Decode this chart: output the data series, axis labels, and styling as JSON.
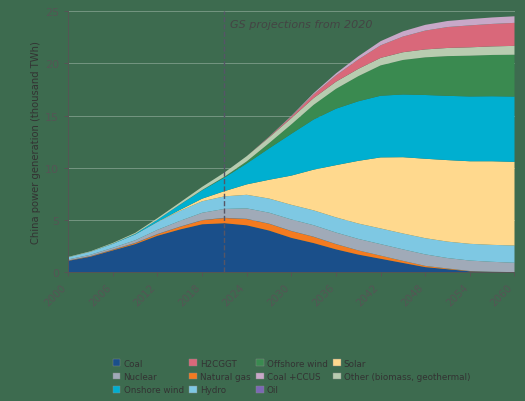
{
  "years": [
    2000,
    2003,
    2006,
    2009,
    2012,
    2015,
    2018,
    2021,
    2024,
    2027,
    2030,
    2033,
    2036,
    2039,
    2042,
    2045,
    2048,
    2051,
    2054,
    2057,
    2060
  ],
  "series": {
    "Coal": [
      1.1,
      1.5,
      2.1,
      2.7,
      3.5,
      4.1,
      4.6,
      4.7,
      4.5,
      4.0,
      3.3,
      2.8,
      2.2,
      1.7,
      1.3,
      0.9,
      0.5,
      0.3,
      0.1,
      0.05,
      0.02
    ],
    "Natural gas": [
      0.02,
      0.04,
      0.06,
      0.1,
      0.15,
      0.25,
      0.38,
      0.5,
      0.6,
      0.65,
      0.65,
      0.6,
      0.5,
      0.4,
      0.3,
      0.2,
      0.12,
      0.07,
      0.03,
      0.01,
      0.0
    ],
    "Oil": [
      0.02,
      0.02,
      0.02,
      0.02,
      0.02,
      0.02,
      0.02,
      0.02,
      0.02,
      0.01,
      0.01,
      0.01,
      0.01,
      0.0,
      0.0,
      0.0,
      0.0,
      0.0,
      0.0,
      0.0,
      0.0
    ],
    "Nuclear": [
      0.1,
      0.13,
      0.17,
      0.25,
      0.4,
      0.55,
      0.7,
      0.85,
      1.0,
      1.05,
      1.1,
      1.1,
      1.1,
      1.1,
      1.1,
      1.1,
      1.1,
      1.0,
      1.0,
      0.95,
      0.9
    ],
    "Hydro": [
      0.2,
      0.28,
      0.38,
      0.55,
      0.75,
      0.95,
      1.1,
      1.2,
      1.3,
      1.35,
      1.4,
      1.42,
      1.45,
      1.47,
      1.5,
      1.52,
      1.55,
      1.57,
      1.6,
      1.62,
      1.65
    ],
    "Solar": [
      0.0,
      0.0,
      0.0,
      0.0,
      0.02,
      0.1,
      0.25,
      0.5,
      1.0,
      1.8,
      2.8,
      3.9,
      5.0,
      6.0,
      6.8,
      7.3,
      7.6,
      7.8,
      7.9,
      8.0,
      8.0
    ],
    "Onshore wind": [
      0.0,
      0.0,
      0.02,
      0.06,
      0.2,
      0.5,
      0.8,
      1.3,
      2.0,
      3.0,
      4.0,
      4.8,
      5.4,
      5.7,
      5.9,
      6.0,
      6.1,
      6.15,
      6.2,
      6.22,
      6.25
    ],
    "Offshore wind": [
      0.0,
      0.0,
      0.0,
      0.0,
      0.0,
      0.01,
      0.03,
      0.08,
      0.2,
      0.5,
      0.9,
      1.4,
      1.9,
      2.4,
      2.9,
      3.3,
      3.6,
      3.8,
      3.9,
      3.95,
      4.0
    ],
    "Other (biomass, geothermal)": [
      0.04,
      0.05,
      0.07,
      0.1,
      0.15,
      0.2,
      0.3,
      0.4,
      0.5,
      0.55,
      0.6,
      0.65,
      0.68,
      0.7,
      0.72,
      0.74,
      0.76,
      0.78,
      0.8,
      0.82,
      0.85
    ],
    "H2CGGT": [
      0.0,
      0.0,
      0.0,
      0.0,
      0.0,
      0.0,
      0.0,
      0.0,
      0.0,
      0.05,
      0.15,
      0.35,
      0.6,
      0.9,
      1.2,
      1.5,
      1.8,
      2.0,
      2.1,
      2.15,
      2.2
    ],
    "Coal +CCUS": [
      0.0,
      0.0,
      0.0,
      0.0,
      0.0,
      0.0,
      0.0,
      0.0,
      0.0,
      0.02,
      0.06,
      0.12,
      0.2,
      0.3,
      0.4,
      0.5,
      0.55,
      0.58,
      0.6,
      0.62,
      0.63
    ]
  },
  "colors": {
    "Coal": "#1a4f8a",
    "Natural gas": "#f47b20",
    "Oil": "#7b68b5",
    "Nuclear": "#a0aab8",
    "Hydro": "#7ec8e3",
    "Solar": "#ffd98e",
    "Onshore wind": "#00afd0",
    "Offshore wind": "#3a8a50",
    "Other (biomass, geothermal)": "#b8ccb0",
    "H2CGGT": "#d9687a",
    "Coal +CCUS": "#c8a8c8"
  },
  "stack_order": [
    "Coal",
    "Natural gas",
    "Oil",
    "Nuclear",
    "Hydro",
    "Solar",
    "Onshore wind",
    "Offshore wind",
    "Other (biomass, geothermal)",
    "H2CGGT",
    "Coal +CCUS"
  ],
  "ylabel": "China power generation (thousand TWh)",
  "ylim": [
    0,
    25
  ],
  "yticks": [
    0,
    5,
    10,
    15,
    20,
    25
  ],
  "xticks": [
    2000,
    2006,
    2012,
    2018,
    2024,
    2030,
    2036,
    2042,
    2048,
    2054,
    2060
  ],
  "xlim": [
    2000,
    2060
  ],
  "vline_x": 2021,
  "vline_label": "GS projections from 2020",
  "background_color": "#3d6b4f",
  "legend_items": [
    [
      "Coal",
      "#1a4f8a"
    ],
    [
      "Nuclear",
      "#a0aab8"
    ],
    [
      "Onshore wind",
      "#00afd0"
    ],
    [
      "H2CGGT",
      "#d9687a"
    ],
    [
      "Natural gas",
      "#f47b20"
    ],
    [
      "Hydro",
      "#7ec8e3"
    ],
    [
      "Offshore wind",
      "#3a8a50"
    ],
    [
      "Coal +CCUS",
      "#c8a8c8"
    ],
    [
      "Oil",
      "#7b68b5"
    ],
    [
      "Solar",
      "#ffd98e"
    ],
    [
      "Other (biomass, geothermal)",
      "#b8ccb0"
    ]
  ]
}
